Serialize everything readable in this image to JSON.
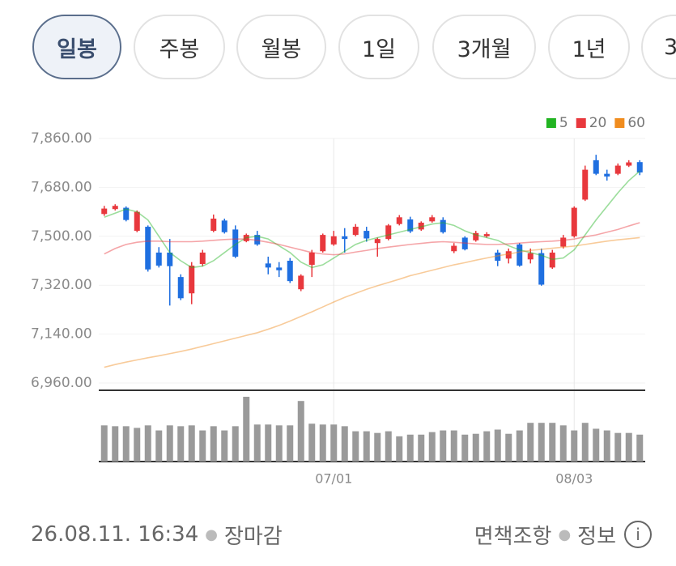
{
  "tabs": [
    "일봉",
    "주봉",
    "월봉",
    "1일",
    "3개월",
    "1년",
    "3"
  ],
  "selected_tab": 0,
  "chart_data": {
    "type": "candlestick",
    "ylim": [
      6960,
      7860
    ],
    "yticks": [
      {
        "value": 6960,
        "label": "6,960.00"
      },
      {
        "value": 7140,
        "label": "7,140.00"
      },
      {
        "value": 7320,
        "label": "7,320.00"
      },
      {
        "value": 7500,
        "label": "7,500.00"
      },
      {
        "value": 7680,
        "label": "7,680.00"
      },
      {
        "value": 7860,
        "label": "7,860.00"
      }
    ],
    "grid": true,
    "legend": "top-right",
    "up_color": "#e8383d",
    "down_color": "#1f6fe0",
    "categories": [
      null,
      null,
      null,
      null,
      null,
      null,
      null,
      null,
      null,
      null,
      null,
      null,
      null,
      null,
      null,
      null,
      null,
      null,
      null,
      null,
      null,
      "07/01",
      null,
      null,
      null,
      null,
      null,
      null,
      null,
      null,
      null,
      null,
      null,
      null,
      null,
      null,
      null,
      null,
      null,
      null,
      null,
      null,
      null,
      "08/03",
      null,
      null,
      null,
      null,
      null,
      null
    ],
    "open": [
      7582,
      7600,
      7605,
      7520,
      7535,
      7440,
      7440,
      7350,
      7290,
      7398,
      7520,
      7558,
      7525,
      7482,
      7505,
      7400,
      7385,
      7410,
      7305,
      7395,
      7445,
      7470,
      7500,
      7505,
      7520,
      7475,
      7490,
      7545,
      7562,
      7525,
      7555,
      7560,
      7445,
      7495,
      7485,
      7500,
      7440,
      7418,
      7470,
      7415,
      7438,
      7385,
      7462,
      7500,
      7635,
      7780,
      7730,
      7730,
      7760,
      7773
    ],
    "high": [
      7612,
      7618,
      7610,
      7595,
      7540,
      7460,
      7490,
      7360,
      7405,
      7450,
      7580,
      7565,
      7540,
      7510,
      7520,
      7425,
      7405,
      7420,
      7360,
      7450,
      7510,
      7520,
      7530,
      7545,
      7535,
      7495,
      7545,
      7578,
      7572,
      7555,
      7578,
      7570,
      7475,
      7500,
      7520,
      7515,
      7450,
      7455,
      7475,
      7455,
      7455,
      7450,
      7505,
      7610,
      7760,
      7800,
      7745,
      7768,
      7780,
      7780
    ],
    "low": [
      7575,
      7595,
      7555,
      7515,
      7370,
      7385,
      7245,
      7265,
      7250,
      7390,
      7515,
      7510,
      7420,
      7478,
      7465,
      7360,
      7350,
      7328,
      7298,
      7350,
      7440,
      7465,
      7440,
      7500,
      7480,
      7425,
      7485,
      7540,
      7512,
      7520,
      7550,
      7510,
      7438,
      7448,
      7480,
      7495,
      7390,
      7400,
      7388,
      7400,
      7318,
      7380,
      7455,
      7495,
      7630,
      7725,
      7705,
      7725,
      7755,
      7725
    ],
    "close": [
      7602,
      7612,
      7560,
      7590,
      7378,
      7392,
      7390,
      7272,
      7392,
      7440,
      7565,
      7515,
      7425,
      7505,
      7470,
      7385,
      7375,
      7335,
      7355,
      7440,
      7505,
      7500,
      7490,
      7535,
      7492,
      7490,
      7540,
      7570,
      7518,
      7550,
      7570,
      7515,
      7465,
      7452,
      7512,
      7508,
      7410,
      7445,
      7392,
      7438,
      7322,
      7440,
      7495,
      7605,
      7745,
      7730,
      7720,
      7760,
      7772,
      7735
    ],
    "series": [
      {
        "name": "5",
        "color": "#22b422",
        "values": [
          7570,
          7585,
          7600,
          7590,
          7560,
          7500,
          7440,
          7410,
          7385,
          7390,
          7410,
          7440,
          7470,
          7495,
          7500,
          7490,
          7465,
          7440,
          7405,
          7385,
          7395,
          7420,
          7445,
          7470,
          7485,
          7495,
          7505,
          7515,
          7525,
          7535,
          7545,
          7550,
          7540,
          7520,
          7505,
          7495,
          7485,
          7465,
          7450,
          7440,
          7430,
          7415,
          7420,
          7450,
          7505,
          7560,
          7610,
          7660,
          7705,
          7740
        ]
      },
      {
        "name": "20",
        "color": "#e8383d",
        "values": [
          7435,
          7455,
          7470,
          7478,
          7482,
          7482,
          7480,
          7480,
          7480,
          7482,
          7485,
          7488,
          7490,
          7490,
          7485,
          7478,
          7470,
          7460,
          7450,
          7440,
          7435,
          7432,
          7435,
          7442,
          7448,
          7455,
          7460,
          7465,
          7470,
          7474,
          7478,
          7480,
          7478,
          7475,
          7472,
          7470,
          7470,
          7472,
          7475,
          7478,
          7480,
          7482,
          7485,
          7490,
          7498,
          7505,
          7515,
          7525,
          7538,
          7550
        ]
      },
      {
        "name": "60",
        "color": "#f08c1e",
        "values": [
          7018,
          7028,
          7037,
          7045,
          7053,
          7060,
          7068,
          7076,
          7085,
          7095,
          7105,
          7115,
          7125,
          7135,
          7145,
          7158,
          7172,
          7188,
          7205,
          7222,
          7240,
          7258,
          7275,
          7290,
          7305,
          7318,
          7330,
          7342,
          7355,
          7365,
          7375,
          7385,
          7395,
          7403,
          7412,
          7420,
          7428,
          7435,
          7442,
          7448,
          7452,
          7456,
          7460,
          7464,
          7470,
          7476,
          7482,
          7487,
          7491,
          7495
        ]
      }
    ],
    "volume": {
      "color": "#9a9a9a",
      "values": [
        43,
        42,
        42,
        40,
        43,
        37,
        43,
        42,
        43,
        37,
        42,
        37,
        42,
        77,
        44,
        44,
        43,
        43,
        72,
        45,
        44,
        44,
        42,
        36,
        36,
        34,
        36,
        30,
        32,
        32,
        35,
        37,
        37,
        32,
        33,
        36,
        38,
        33,
        37,
        46,
        46,
        46,
        43,
        37,
        46,
        39,
        37,
        34,
        34,
        32
      ]
    }
  },
  "footer": {
    "timestamp": "26.08.11. 16:34",
    "status": "장마감",
    "disclaimer": "면책조항",
    "info": "정보",
    "info_icon": "i"
  }
}
